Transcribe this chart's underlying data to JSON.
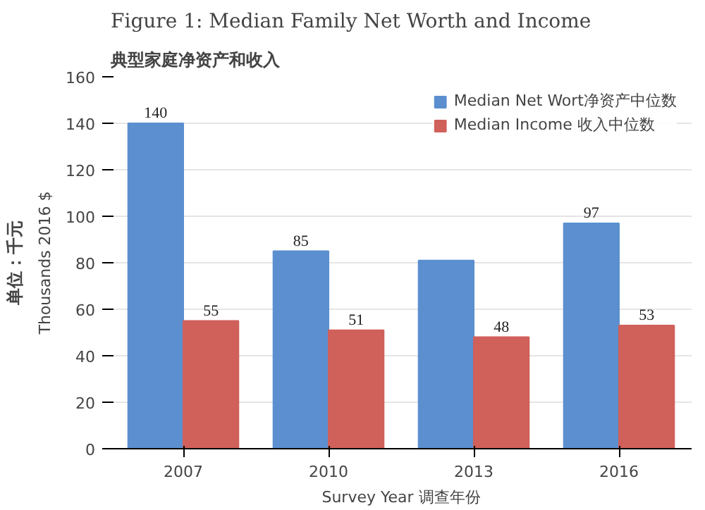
{
  "chart_data": {
    "type": "bar",
    "title": "Figure 1: Median Family Net Worth and Income",
    "subtitle": "典型家庭净资产和收入",
    "xlabel": "Survey Year 调查年份",
    "ylabel": "Thousands 2016 $",
    "annotations": [
      "单位：千元"
    ],
    "categories": [
      "2007",
      "2010",
      "2013",
      "2016"
    ],
    "series": [
      {
        "name": "Median Net Wort净资产中位数",
        "color": "#5b8fcf",
        "values": [
          140,
          85,
          81,
          97
        ],
        "value_labels": [
          "140",
          "85",
          null,
          "97"
        ]
      },
      {
        "name": "Median Income 收入中位数",
        "color": "#d0605a",
        "values": [
          55,
          51,
          48,
          53
        ],
        "value_labels": [
          "55",
          "51",
          "48",
          "53"
        ]
      }
    ],
    "ylim": [
      0,
      160
    ],
    "yticks": [
      0,
      20,
      40,
      60,
      80,
      100,
      120,
      140,
      160
    ],
    "grid": "y",
    "legend": "top right"
  }
}
